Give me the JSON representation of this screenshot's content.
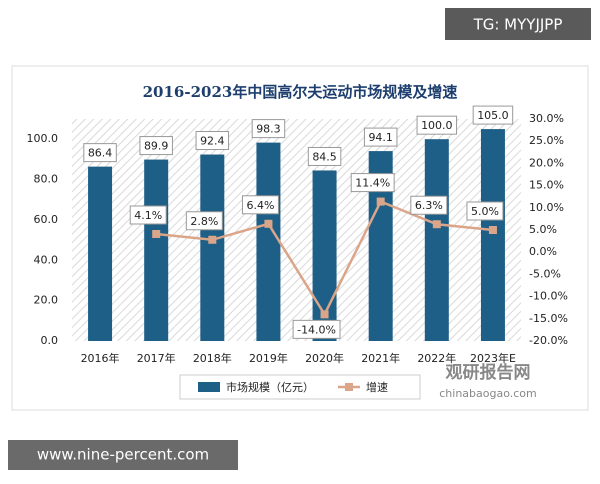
{
  "watermarks": {
    "top": "TG: MYYJJPP",
    "bottom": "www.nine-percent.com",
    "logo": "观研报告网",
    "logo_url": "chinabaogao.com"
  },
  "chart_data": {
    "type": "bar",
    "title": "2016-2023年中国高尔夫运动市场规模及增速",
    "categories": [
      "2016年",
      "2017年",
      "2018年",
      "2019年",
      "2020年",
      "2021年",
      "2022年",
      "2023年E"
    ],
    "series": [
      {
        "name": "市场规模（亿元）",
        "type": "bar",
        "color": "#1d5f86",
        "values": [
          86.4,
          89.9,
          92.4,
          98.3,
          84.5,
          94.1,
          100.0,
          105.0
        ],
        "value_labels": [
          "86.4",
          "89.9",
          "92.4",
          "98.3",
          "84.5",
          "94.1",
          "100.0",
          "105.0"
        ]
      },
      {
        "name": "增速",
        "type": "line",
        "axis": "y2",
        "color": "#dba58a",
        "values": [
          null,
          4.1,
          2.8,
          6.4,
          -14.0,
          11.4,
          6.3,
          5.0
        ],
        "value_labels": [
          null,
          "4.1%",
          "2.8%",
          "6.4%",
          "-14.0%",
          "11.4%",
          "6.3%",
          "5.0%"
        ]
      }
    ],
    "ylim": [
      0,
      110
    ],
    "yticks": [
      {
        "value": 0,
        "label": "0.0"
      },
      {
        "value": 20,
        "label": "20.0"
      },
      {
        "value": 40,
        "label": "40.0"
      },
      {
        "value": 60,
        "label": "60.0"
      },
      {
        "value": 80,
        "label": "80.0"
      },
      {
        "value": 100,
        "label": "100.0"
      }
    ],
    "y2lim": [
      -20,
      30
    ],
    "y2ticks": [
      {
        "value": -20,
        "label": "-20.0%"
      },
      {
        "value": -15,
        "label": "-15.0%"
      },
      {
        "value": -10,
        "label": "-10.0%"
      },
      {
        "value": -5,
        "label": "-5.0%"
      },
      {
        "value": 0,
        "label": "0.0%"
      },
      {
        "value": 5,
        "label": "5.0%"
      },
      {
        "value": 10,
        "label": "10.0%"
      },
      {
        "value": 15,
        "label": "15.0%"
      },
      {
        "value": 20,
        "label": "20.0%"
      },
      {
        "value": 25,
        "label": "25.0%"
      },
      {
        "value": 30,
        "label": "30.0%"
      }
    ],
    "grid": false
  }
}
